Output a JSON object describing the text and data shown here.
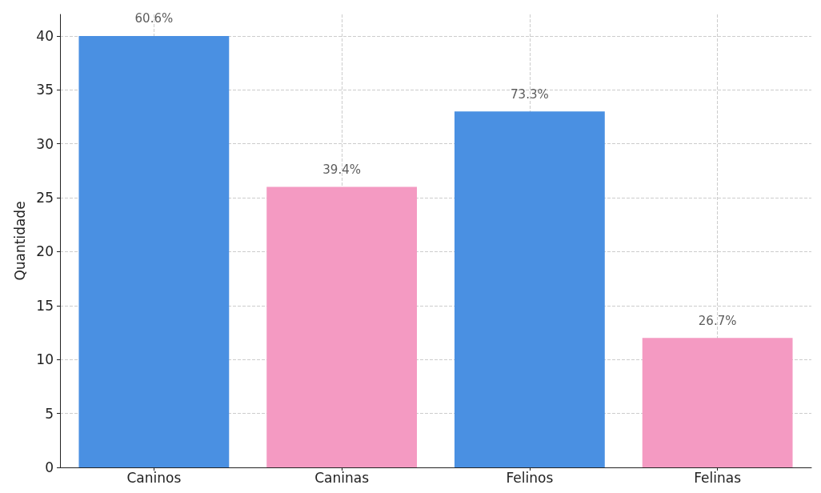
{
  "chart_data": {
    "type": "bar",
    "ylabel": "Quantidade",
    "categories": [
      "Caninos",
      "Caninas",
      "Felinos",
      "Felinas"
    ],
    "values": [
      40,
      26,
      33,
      12
    ],
    "colors": [
      "#4a90e2",
      "#f49ac2",
      "#4a90e2",
      "#f49ac2"
    ],
    "annotations": [
      {
        "text": "60.6%",
        "x": "Caninos",
        "y": 40
      },
      {
        "text": "39.4%",
        "x": "Caninas",
        "y": 26
      },
      {
        "text": "73.3%",
        "x": "Felinos",
        "y": 33
      },
      {
        "text": "26.7%",
        "x": "Felinas",
        "y": 12
      }
    ],
    "ylim": [
      0,
      42
    ],
    "yticks": [
      0,
      5,
      10,
      15,
      20,
      25,
      30,
      35,
      40
    ],
    "grid": true
  }
}
